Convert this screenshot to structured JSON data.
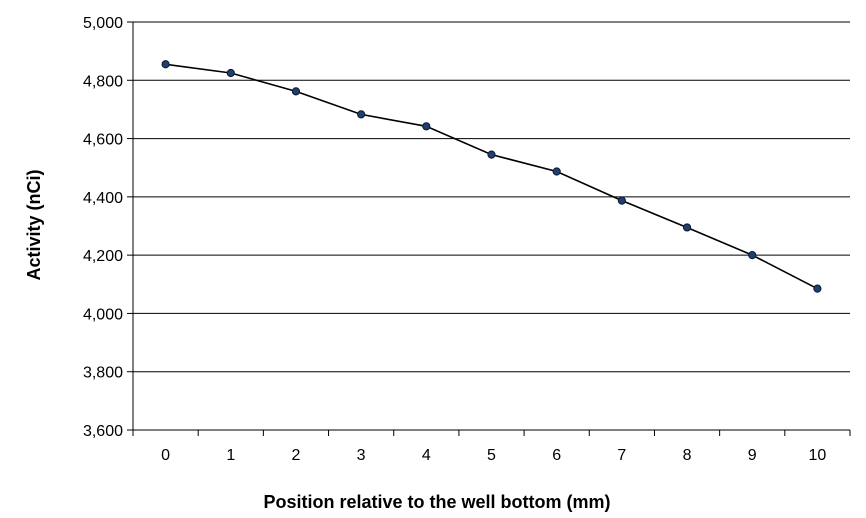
{
  "chart_data": {
    "type": "line",
    "title": "",
    "xlabel": "Position relative to the well bottom (mm)",
    "ylabel": "Activity  (nCi)",
    "x": [
      0,
      1,
      2,
      3,
      4,
      5,
      6,
      7,
      8,
      9,
      10
    ],
    "x_tick_labels": [
      "0",
      "1",
      "2",
      "3",
      "4",
      "5",
      "6",
      "7",
      "8",
      "9",
      "10"
    ],
    "y_ticks": [
      3600,
      3800,
      4000,
      4200,
      4400,
      4600,
      4800,
      5000
    ],
    "y_tick_labels": [
      "3,600",
      "3,800",
      "4,000",
      "4,200",
      "4,400",
      "4,600",
      "4,800",
      "5,000"
    ],
    "ylim": [
      3600,
      5000
    ],
    "grid": "horizontal",
    "legend": "none",
    "series": [
      {
        "values": [
          4855,
          4825,
          4762,
          4683,
          4642,
          4545,
          4487,
          4387,
          4295,
          4200,
          4085
        ],
        "line_color": "#000000",
        "marker_color": "#1f3f6e"
      }
    ]
  }
}
